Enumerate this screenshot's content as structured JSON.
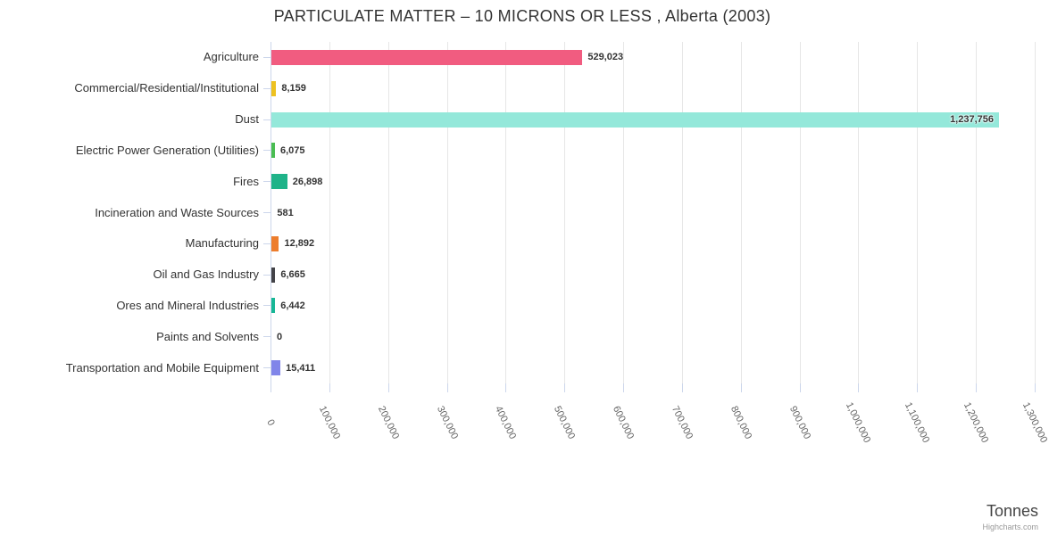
{
  "title": "PARTICULATE MATTER – 10 MICRONS OR LESS , Alberta (2003)",
  "credits": "Highcharts.com",
  "chart_data": {
    "type": "bar",
    "orientation": "horizontal",
    "title": "PARTICULATE MATTER – 10 MICRONS OR LESS , Alberta (2003)",
    "xlabel": "Tonnes",
    "ylabel": "",
    "legend": false,
    "grid": true,
    "axis_range": [
      0,
      1300000
    ],
    "tick_interval": 100000,
    "axis_tick_labels": [
      "0",
      "100,000",
      "200,000",
      "300,000",
      "400,000",
      "500,000",
      "600,000",
      "700,000",
      "800,000",
      "900,000",
      "1,000,000",
      "1,100,000",
      "1,200,000",
      "1,300,000"
    ],
    "categories": [
      "Agriculture",
      "Commercial/Residential/Institutional",
      "Dust",
      "Electric Power Generation (Utilities)",
      "Fires",
      "Incineration and Waste Sources",
      "Manufacturing",
      "Oil and Gas Industry",
      "Ores and Mineral Industries",
      "Paints and Solvents",
      "Transportation and Mobile Equipment"
    ],
    "values": [
      529023,
      8159,
      1237756,
      6075,
      26898,
      581,
      12892,
      6665,
      6442,
      0,
      15411
    ],
    "value_labels": [
      "529,023",
      "8,159",
      "1,237,756",
      "6,075",
      "26,898",
      "581",
      "12,892",
      "6,665",
      "6,442",
      "0",
      "15,411"
    ],
    "label_inside": [
      false,
      false,
      true,
      false,
      false,
      false,
      false,
      false,
      false,
      false,
      false
    ],
    "bar_colors": [
      "#f15c80",
      "#edc120",
      "#94e8da",
      "#4abd52",
      "#1fb389",
      "#999999",
      "#ed7d2d",
      "#434348",
      "#17b796",
      "#999999",
      "#8085e9"
    ]
  },
  "style_colors": {
    "grid": "#e6e6e6",
    "axis": "#ccd6eb",
    "title_text": "#333333",
    "label_text": "#333333",
    "tick_text": "#666666"
  }
}
